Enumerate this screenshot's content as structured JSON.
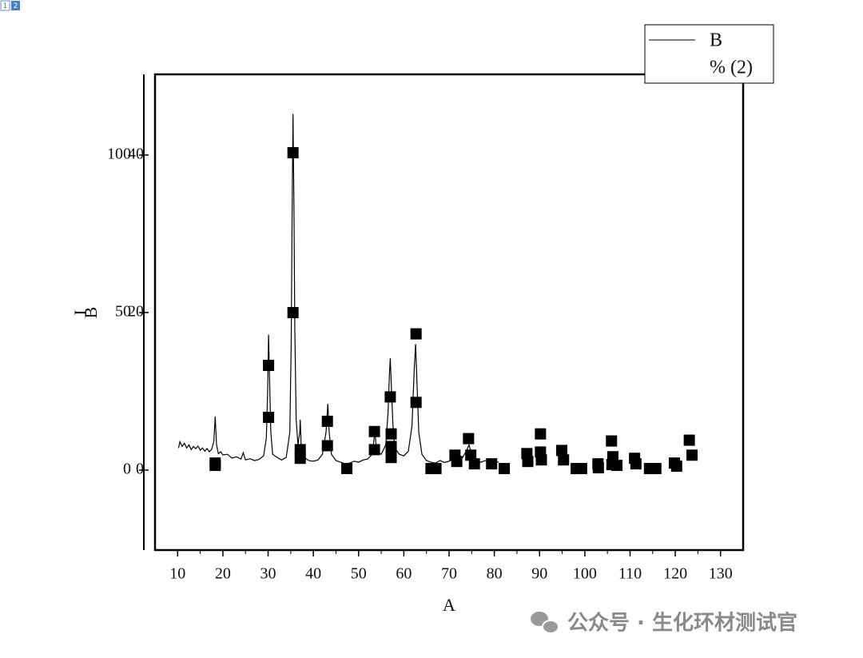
{
  "page_tabs": [
    "1",
    "2"
  ],
  "watermark": "公众号 · 生化环材测试官",
  "chart_data": {
    "type": "line",
    "xlabel": "A",
    "ylabel": "I",
    "y2label": "B",
    "xlim": [
      5,
      135
    ],
    "xticks": [
      10,
      20,
      30,
      40,
      50,
      60,
      70,
      80,
      90,
      100,
      110,
      120,
      130
    ],
    "ylim": [
      -25.4,
      125.6
    ],
    "yticks": [
      0,
      50,
      100
    ],
    "y2lim": [
      -10.15,
      50.25
    ],
    "y2ticks": [
      0,
      20,
      40
    ],
    "legend": "top-right",
    "series": [
      {
        "name": "B",
        "type": "line",
        "color": "#000000",
        "x": [
          10.2,
          10.5,
          11,
          11.5,
          12,
          12.5,
          13,
          13.5,
          14,
          14.5,
          15,
          15.5,
          16,
          16.5,
          17,
          17.5,
          18,
          18.3,
          18.6,
          19,
          19.5,
          20,
          21,
          22,
          23,
          24,
          24.5,
          25,
          26,
          27,
          28,
          29,
          29.6,
          29.9,
          30.1,
          30.3,
          30.6,
          31,
          32,
          33,
          34,
          34.8,
          35.1,
          35.3,
          35.5,
          35.7,
          35.9,
          36.2,
          36.6,
          37,
          37.1,
          37.3,
          38,
          39,
          40,
          41,
          42,
          42.8,
          43.2,
          43.5,
          44,
          45,
          46,
          47,
          48,
          49,
          50,
          51,
          52,
          53,
          53.6,
          54,
          55,
          56,
          56.5,
          56.8,
          57,
          57.2,
          57.6,
          58,
          59,
          60,
          61,
          61.8,
          62.3,
          62.6,
          62.9,
          63.3,
          64,
          65,
          66,
          67,
          68,
          69,
          70,
          71,
          72,
          73,
          73.8,
          74.4,
          75,
          76,
          77,
          78,
          79,
          80,
          81
        ],
        "values": [
          7,
          9,
          7.5,
          8.5,
          7,
          8,
          6.5,
          7.5,
          6.8,
          7.6,
          6.3,
          7,
          6,
          6.8,
          5.8,
          6.5,
          9,
          17,
          8,
          5.2,
          5.8,
          4.8,
          5,
          3.8,
          4.2,
          3.5,
          5.5,
          3.2,
          3.6,
          3,
          3.4,
          4.5,
          10,
          25,
          43,
          30,
          12,
          5,
          4,
          3.2,
          4,
          12,
          40,
          80,
          113,
          85,
          45,
          16,
          8,
          12,
          16,
          8,
          4,
          3,
          2.8,
          3.2,
          5,
          12,
          21,
          12,
          5,
          3,
          2.5,
          2,
          2.2,
          2.8,
          2.5,
          3.2,
          3.5,
          5,
          12,
          6,
          5,
          8,
          18,
          30,
          35.5,
          28,
          14,
          7,
          5,
          4.5,
          6,
          14,
          32,
          40,
          28,
          12,
          5,
          3,
          2.5,
          2.2,
          3,
          2.4,
          2.8,
          3.5,
          3,
          4,
          6,
          8,
          5,
          3,
          2.5,
          3,
          2.4,
          2.8,
          2.5
        ]
      },
      {
        "name": "% (2)",
        "type": "scatter",
        "axis": "y2",
        "color": "#000000",
        "x": [
          18.3,
          18.3,
          30.1,
          30.1,
          35.5,
          35.5,
          37.1,
          37.1,
          43.1,
          43.1,
          47.4,
          53.5,
          53.5,
          57.0,
          57.2,
          57.2,
          57.2,
          62.7,
          62.7,
          66.0,
          67.1,
          71.3,
          71.7,
          74.3,
          74.8,
          75.6,
          79.4,
          82.2,
          87.2,
          87.4,
          90.2,
          90.2,
          90.4,
          94.9,
          95.3,
          98.1,
          99.3,
          102.9,
          103.0,
          105.9,
          106.2,
          106.0,
          107.1,
          111.0,
          111.3,
          114.3,
          115.7,
          119.8,
          120.3,
          123.1,
          123.7
        ],
        "values": [
          0.6,
          0.9,
          13.3,
          6.7,
          40.3,
          20,
          2.6,
          1.5,
          6.2,
          3.1,
          0.2,
          4.9,
          2.6,
          9.3,
          4.6,
          3.0,
          1.6,
          17.3,
          8.6,
          0.2,
          0.2,
          1.9,
          1.1,
          4.0,
          1.9,
          0.8,
          0.8,
          0.2,
          2.1,
          1.1,
          4.6,
          2.3,
          1.3,
          2.5,
          1.3,
          0.2,
          0.2,
          0.8,
          0.3,
          3.7,
          1.7,
          0.7,
          0.6,
          1.5,
          0.8,
          0.2,
          0.2,
          0.9,
          0.5,
          3.8,
          1.9
        ]
      }
    ]
  }
}
